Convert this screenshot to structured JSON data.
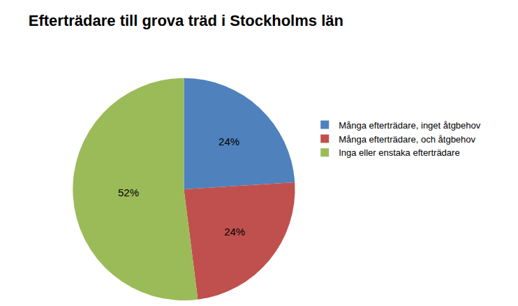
{
  "chart_data": {
    "type": "pie",
    "title": "Efterträdare till grova träd i Stockholms län",
    "categories": [
      "Många efterträdare, inget åtgbehov",
      "Många efterträdare, och åtgbehov",
      "Inga eller enstaka efterträdare"
    ],
    "values": [
      24,
      24,
      52
    ],
    "value_labels": [
      "24%",
      "24%",
      "52%"
    ],
    "colors": [
      "#4f81bd",
      "#c0504d",
      "#9bbb59"
    ],
    "data_labels": true,
    "legend": "right"
  }
}
